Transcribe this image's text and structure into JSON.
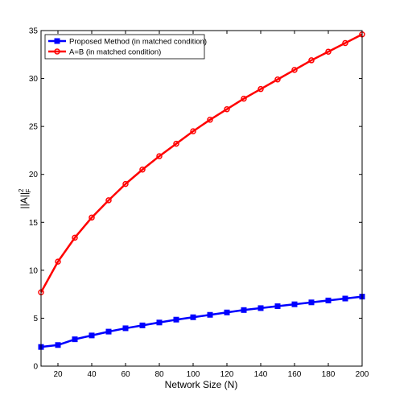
{
  "chart_data": {
    "type": "line",
    "xlabel": "Network Size (N)",
    "ylabel": "||A||F2",
    "ylabel_parts": {
      "main": "||A||",
      "sup": "2",
      "sub": "F"
    },
    "xlim": [
      10,
      200
    ],
    "ylim": [
      0,
      35
    ],
    "xticks": [
      20,
      40,
      60,
      80,
      100,
      120,
      140,
      160,
      180,
      200
    ],
    "yticks": [
      0,
      5,
      10,
      15,
      20,
      25,
      30,
      35
    ],
    "grid": false,
    "legend_position": "top-left",
    "x": [
      10,
      20,
      30,
      40,
      50,
      60,
      70,
      80,
      90,
      100,
      110,
      120,
      130,
      140,
      150,
      160,
      170,
      180,
      190,
      200
    ],
    "series": [
      {
        "name": "Proposed Method (in matched condition)",
        "color": "#0000ff",
        "marker": "square",
        "values": [
          2.0,
          2.2,
          2.8,
          3.2,
          3.6,
          3.95,
          4.25,
          4.55,
          4.85,
          5.1,
          5.35,
          5.6,
          5.85,
          6.05,
          6.25,
          6.45,
          6.65,
          6.85,
          7.05,
          7.25
        ]
      },
      {
        "name": "A=B (in matched condition)",
        "color": "#ff0000",
        "marker": "circle",
        "values": [
          7.7,
          10.9,
          13.4,
          15.5,
          17.3,
          19.0,
          20.5,
          21.9,
          23.2,
          24.5,
          25.7,
          26.8,
          27.9,
          28.9,
          29.9,
          30.9,
          31.9,
          32.8,
          33.7,
          34.6
        ]
      }
    ]
  }
}
